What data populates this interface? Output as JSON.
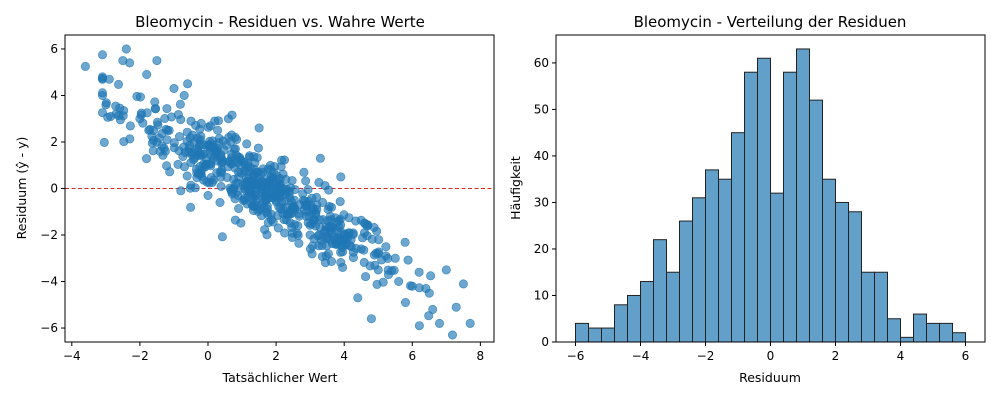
{
  "chart_data": [
    {
      "type": "scatter",
      "title": "Bleomycin - Residuen vs. Wahre Werte",
      "xlabel": "Tatsächlicher Wert",
      "ylabel": "Residuum (ŷ - y)",
      "xlim": [
        -4.2,
        8.4
      ],
      "ylim": [
        -6.6,
        6.6
      ],
      "xticks": [
        -4,
        -2,
        0,
        2,
        4,
        6,
        8
      ],
      "yticks": [
        -6,
        -4,
        -2,
        0,
        2,
        4,
        6
      ],
      "x_tick_labels": [
        "−4",
        "−2",
        "0",
        "2",
        "4",
        "6",
        "8"
      ],
      "y_tick_labels": [
        "−6",
        "−4",
        "−2",
        "0",
        "2",
        "4",
        "6"
      ],
      "grid": false,
      "point_color": "#1f77b4",
      "point_opacity": 0.65,
      "reference_line": {
        "y": 0,
        "color": "#d62728",
        "style": "dashed"
      },
      "approx_points": 600,
      "sample_points": {
        "x": [
          -3.6,
          -3.1,
          -3.0,
          -2.9,
          -2.5,
          -2.4,
          -2.3,
          -1.8,
          -1.5,
          -1.0,
          -0.7,
          -0.6,
          -0.5,
          -0.2,
          0.2,
          0.6,
          0.8,
          1.1,
          1.5,
          1.8,
          2.1,
          2.4,
          2.7,
          3.1,
          3.3,
          3.6,
          3.9,
          4.2,
          4.5,
          4.8,
          5.0,
          5.3,
          5.6,
          5.8,
          6.0,
          6.2,
          6.4,
          6.6,
          6.8,
          7.0,
          7.5,
          7.7,
          -0.8,
          0.0,
          0.9,
          1.3,
          2.0,
          2.9,
          3.6,
          4.4,
          5.5,
          -1.2,
          -2.0,
          0.4,
          1.7,
          3.0,
          4.0,
          5.0,
          6.5,
          -2.7,
          -1.6,
          -0.3,
          0.7,
          2.3,
          3.8,
          4.9
        ],
        "y": [
          5.25,
          5.75,
          3.6,
          4.7,
          5.5,
          6.0,
          5.4,
          4.9,
          5.5,
          4.3,
          4.0,
          4.5,
          2.9,
          2.8,
          2.9,
          3.0,
          2.2,
          1.0,
          2.6,
          0.3,
          -0.2,
          -0.4,
          -0.7,
          -1.4,
          1.3,
          -1.6,
          0.5,
          -2.2,
          -2.6,
          -5.6,
          -3.5,
          -3.7,
          -4.0,
          -4.9,
          -4.2,
          -3.6,
          -4.3,
          -5.2,
          -5.8,
          -3.5,
          -4.1,
          -5.8,
          -0.1,
          -0.3,
          0.5,
          0.1,
          -0.5,
          -1.0,
          -1.8,
          -4.7,
          -3.0,
          2.1,
          3.0,
          0.8,
          -0.2,
          -2.0,
          -2.4,
          -2.8,
          -4.5,
          3.2,
          2.5,
          1.6,
          1.1,
          -0.8,
          -1.8,
          -3.3
        ]
      }
    },
    {
      "type": "bar",
      "title": "Bleomycin - Verteilung der Residuen",
      "xlabel": "Residuum",
      "ylabel": "Häufigkeit",
      "xlim": [
        -6.6,
        6.6
      ],
      "ylim": [
        0,
        66
      ],
      "xticks": [
        -6,
        -4,
        -2,
        0,
        2,
        4,
        6
      ],
      "yticks": [
        0,
        10,
        20,
        30,
        40,
        50,
        60
      ],
      "x_tick_labels": [
        "−6",
        "−4",
        "−2",
        "0",
        "2",
        "4",
        "6"
      ],
      "y_tick_labels": [
        "0",
        "10",
        "20",
        "30",
        "40",
        "50",
        "60"
      ],
      "grid": false,
      "bar_color": "#1f77b4",
      "bar_opacity": 0.7,
      "edge_color": "#222222",
      "bin_start": -6.0,
      "bin_width": 0.4,
      "values": [
        4,
        3,
        3,
        8,
        10,
        13,
        22,
        15,
        26,
        31,
        37,
        35,
        45,
        58,
        61,
        32,
        58,
        63,
        52,
        35,
        30,
        28,
        15,
        15,
        5,
        1,
        6,
        4,
        4,
        2
      ]
    }
  ]
}
